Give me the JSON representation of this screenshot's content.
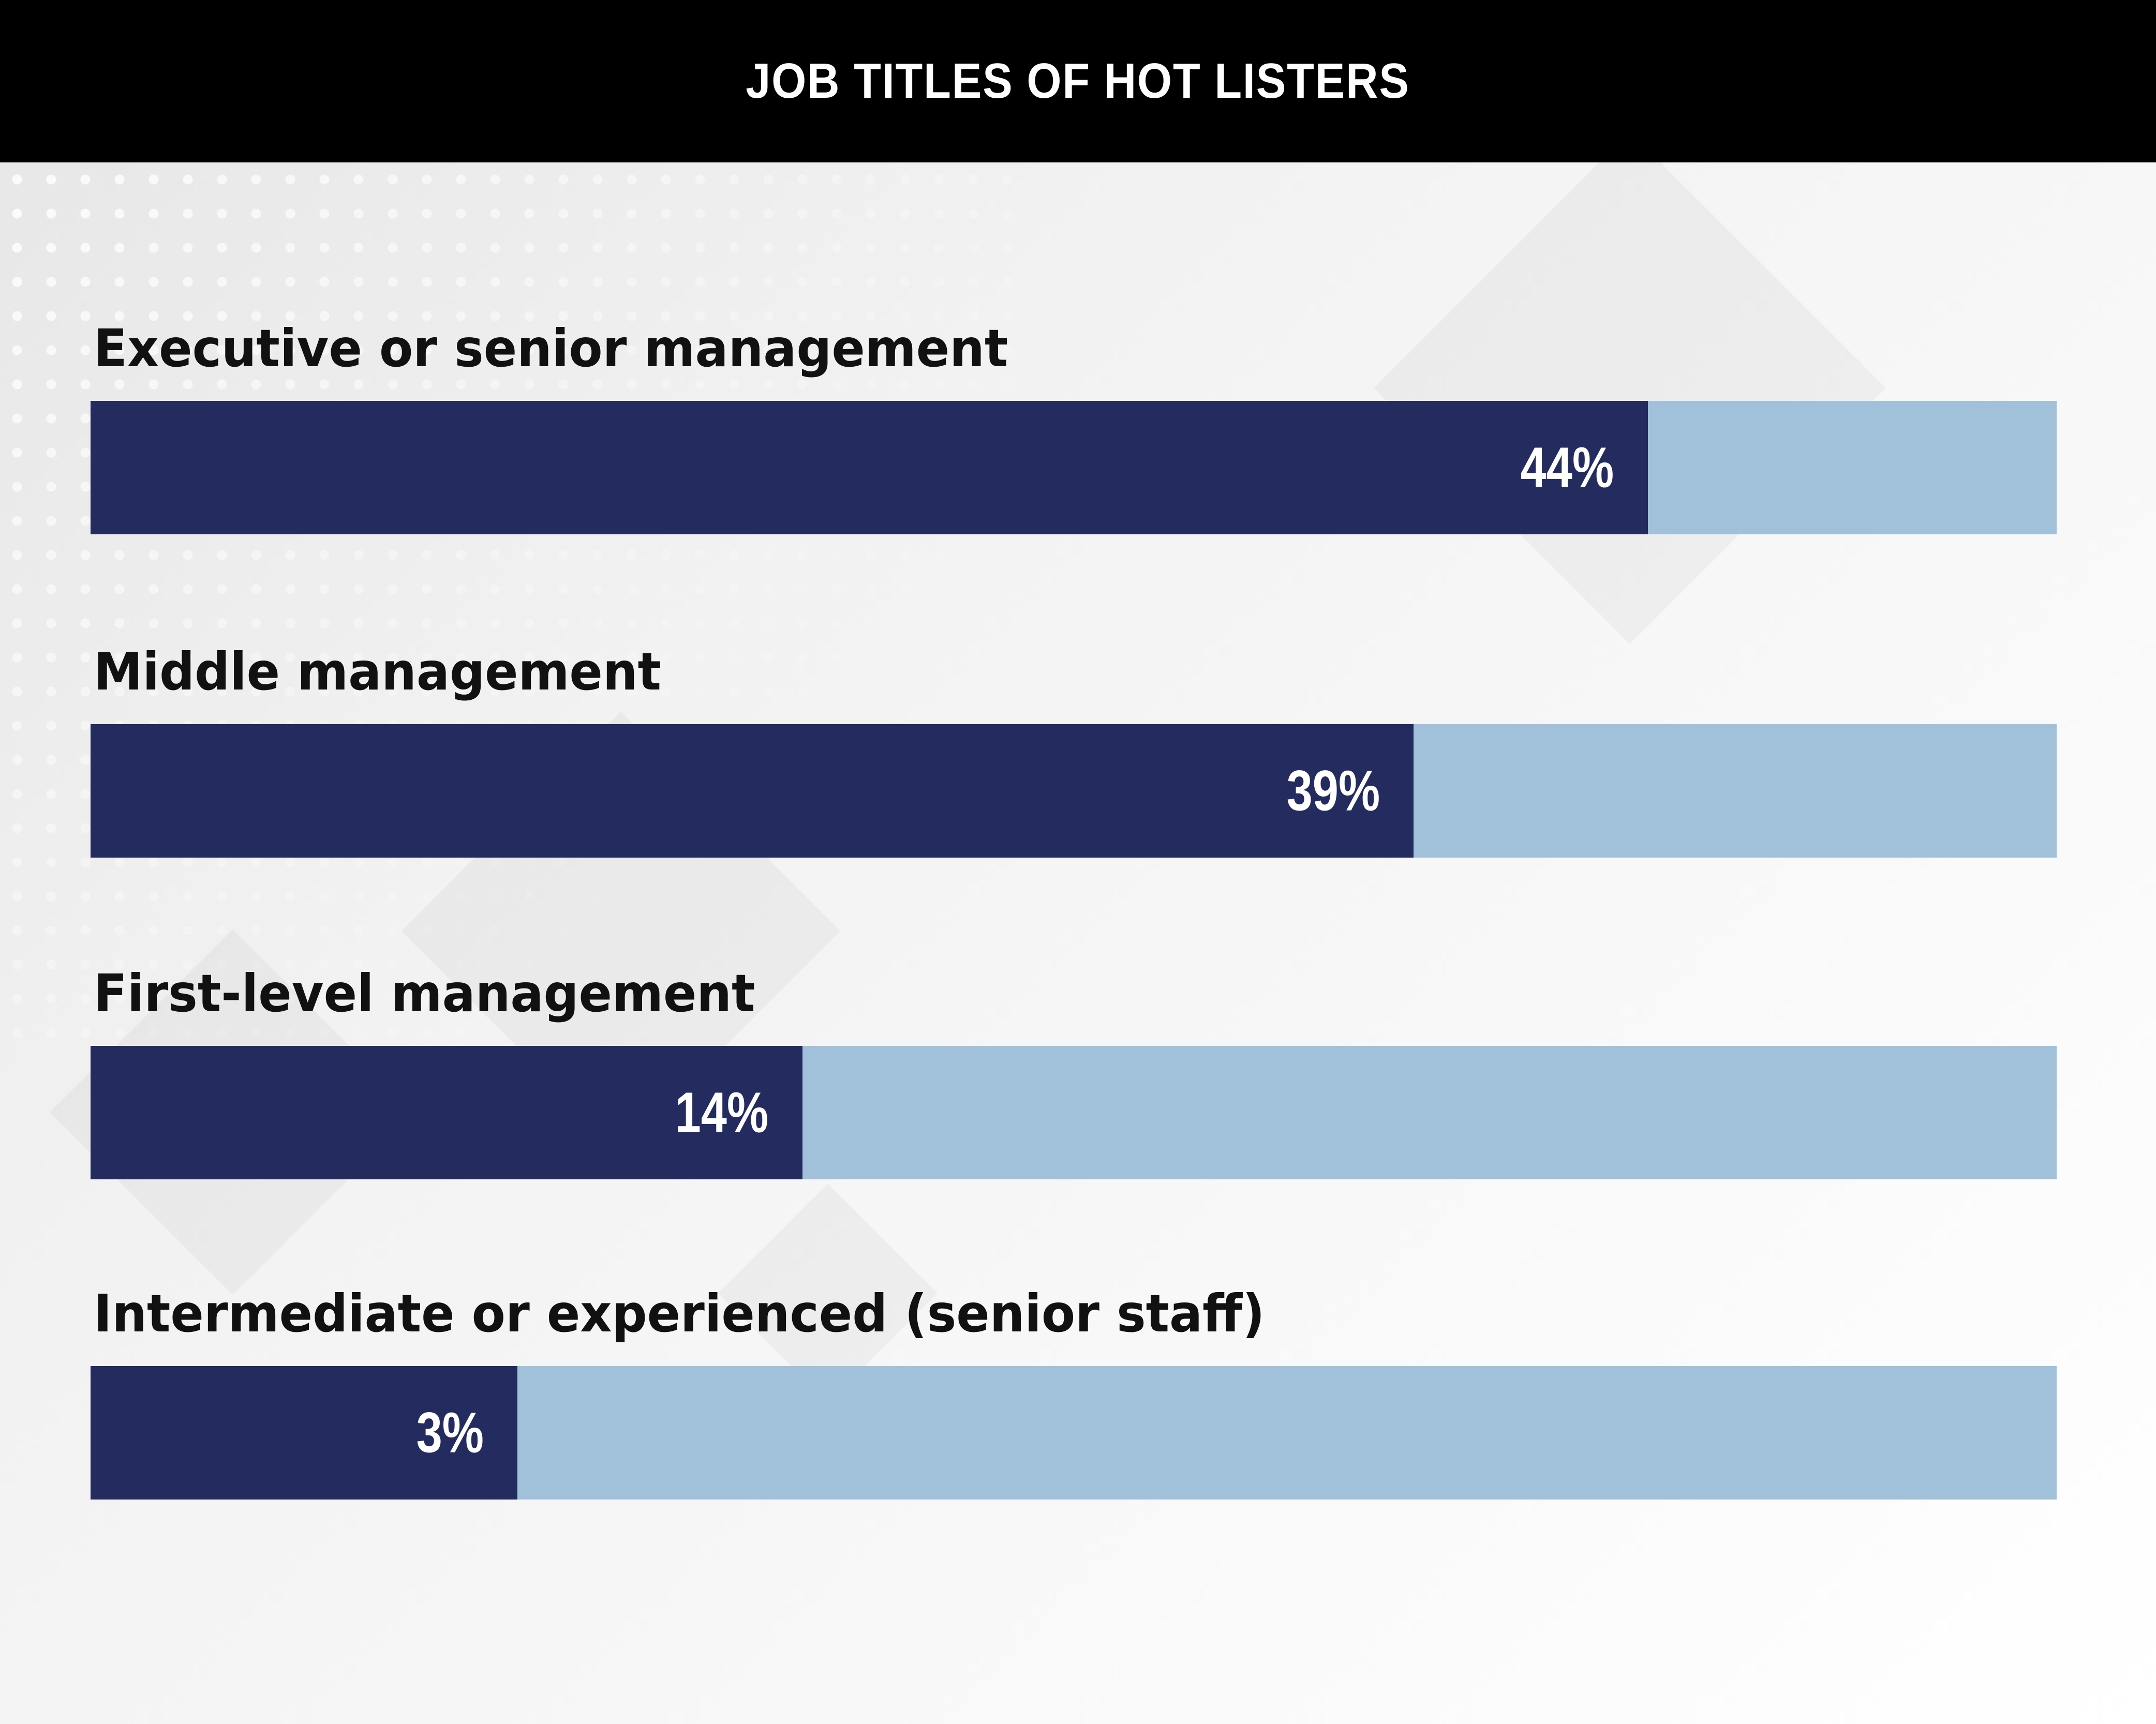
{
  "chart_data": {
    "type": "bar",
    "orientation": "horizontal",
    "title": "JOB TITLES OF HOT LISTERS",
    "categories": [
      "Executive or senior management",
      "Middle management",
      "First-level management",
      "Intermediate or experienced (senior staff)"
    ],
    "values": [
      44,
      39,
      14,
      3
    ],
    "value_labels": [
      "44%",
      "39%",
      "14%",
      "3%"
    ],
    "fill_fractions": [
      0.792,
      0.673,
      0.362,
      0.217
    ],
    "colors": {
      "fill": "#232b5f",
      "track": "#a1c1da",
      "header": "#000000"
    }
  }
}
